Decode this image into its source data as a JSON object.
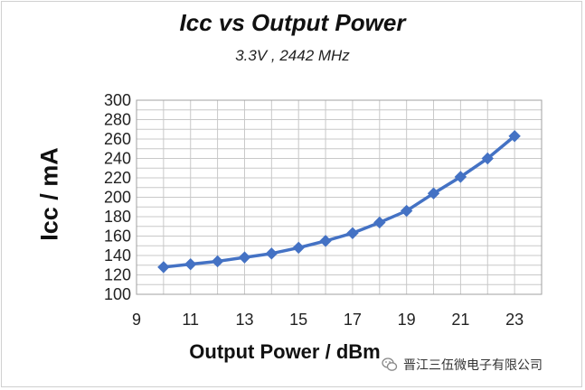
{
  "chart_data": {
    "type": "line",
    "title": "Icc vs Output Power",
    "subtitle": "3.3V , 2442 MHz",
    "xlabel": "Output Power / dBm",
    "ylabel": "Icc / mA",
    "xlim": [
      9,
      24
    ],
    "ylim": [
      100,
      300
    ],
    "x_ticks": [
      9,
      11,
      13,
      15,
      17,
      19,
      21,
      23
    ],
    "y_ticks": [
      100,
      120,
      140,
      160,
      180,
      200,
      220,
      240,
      260,
      280,
      300
    ],
    "grid": true,
    "legend": "none",
    "series": [
      {
        "color": "#4472c4",
        "marker": "diamond",
        "x": [
          10,
          11,
          12,
          13,
          14,
          15,
          16,
          17,
          18,
          19,
          20,
          21,
          22,
          23
        ],
        "y": [
          128,
          131,
          134,
          138,
          142,
          148,
          155,
          163,
          174,
          186,
          204,
          221,
          240,
          263
        ]
      }
    ]
  },
  "watermark": {
    "text": "晋江三伍微电子有限公司",
    "icon": "wechat-icon"
  }
}
